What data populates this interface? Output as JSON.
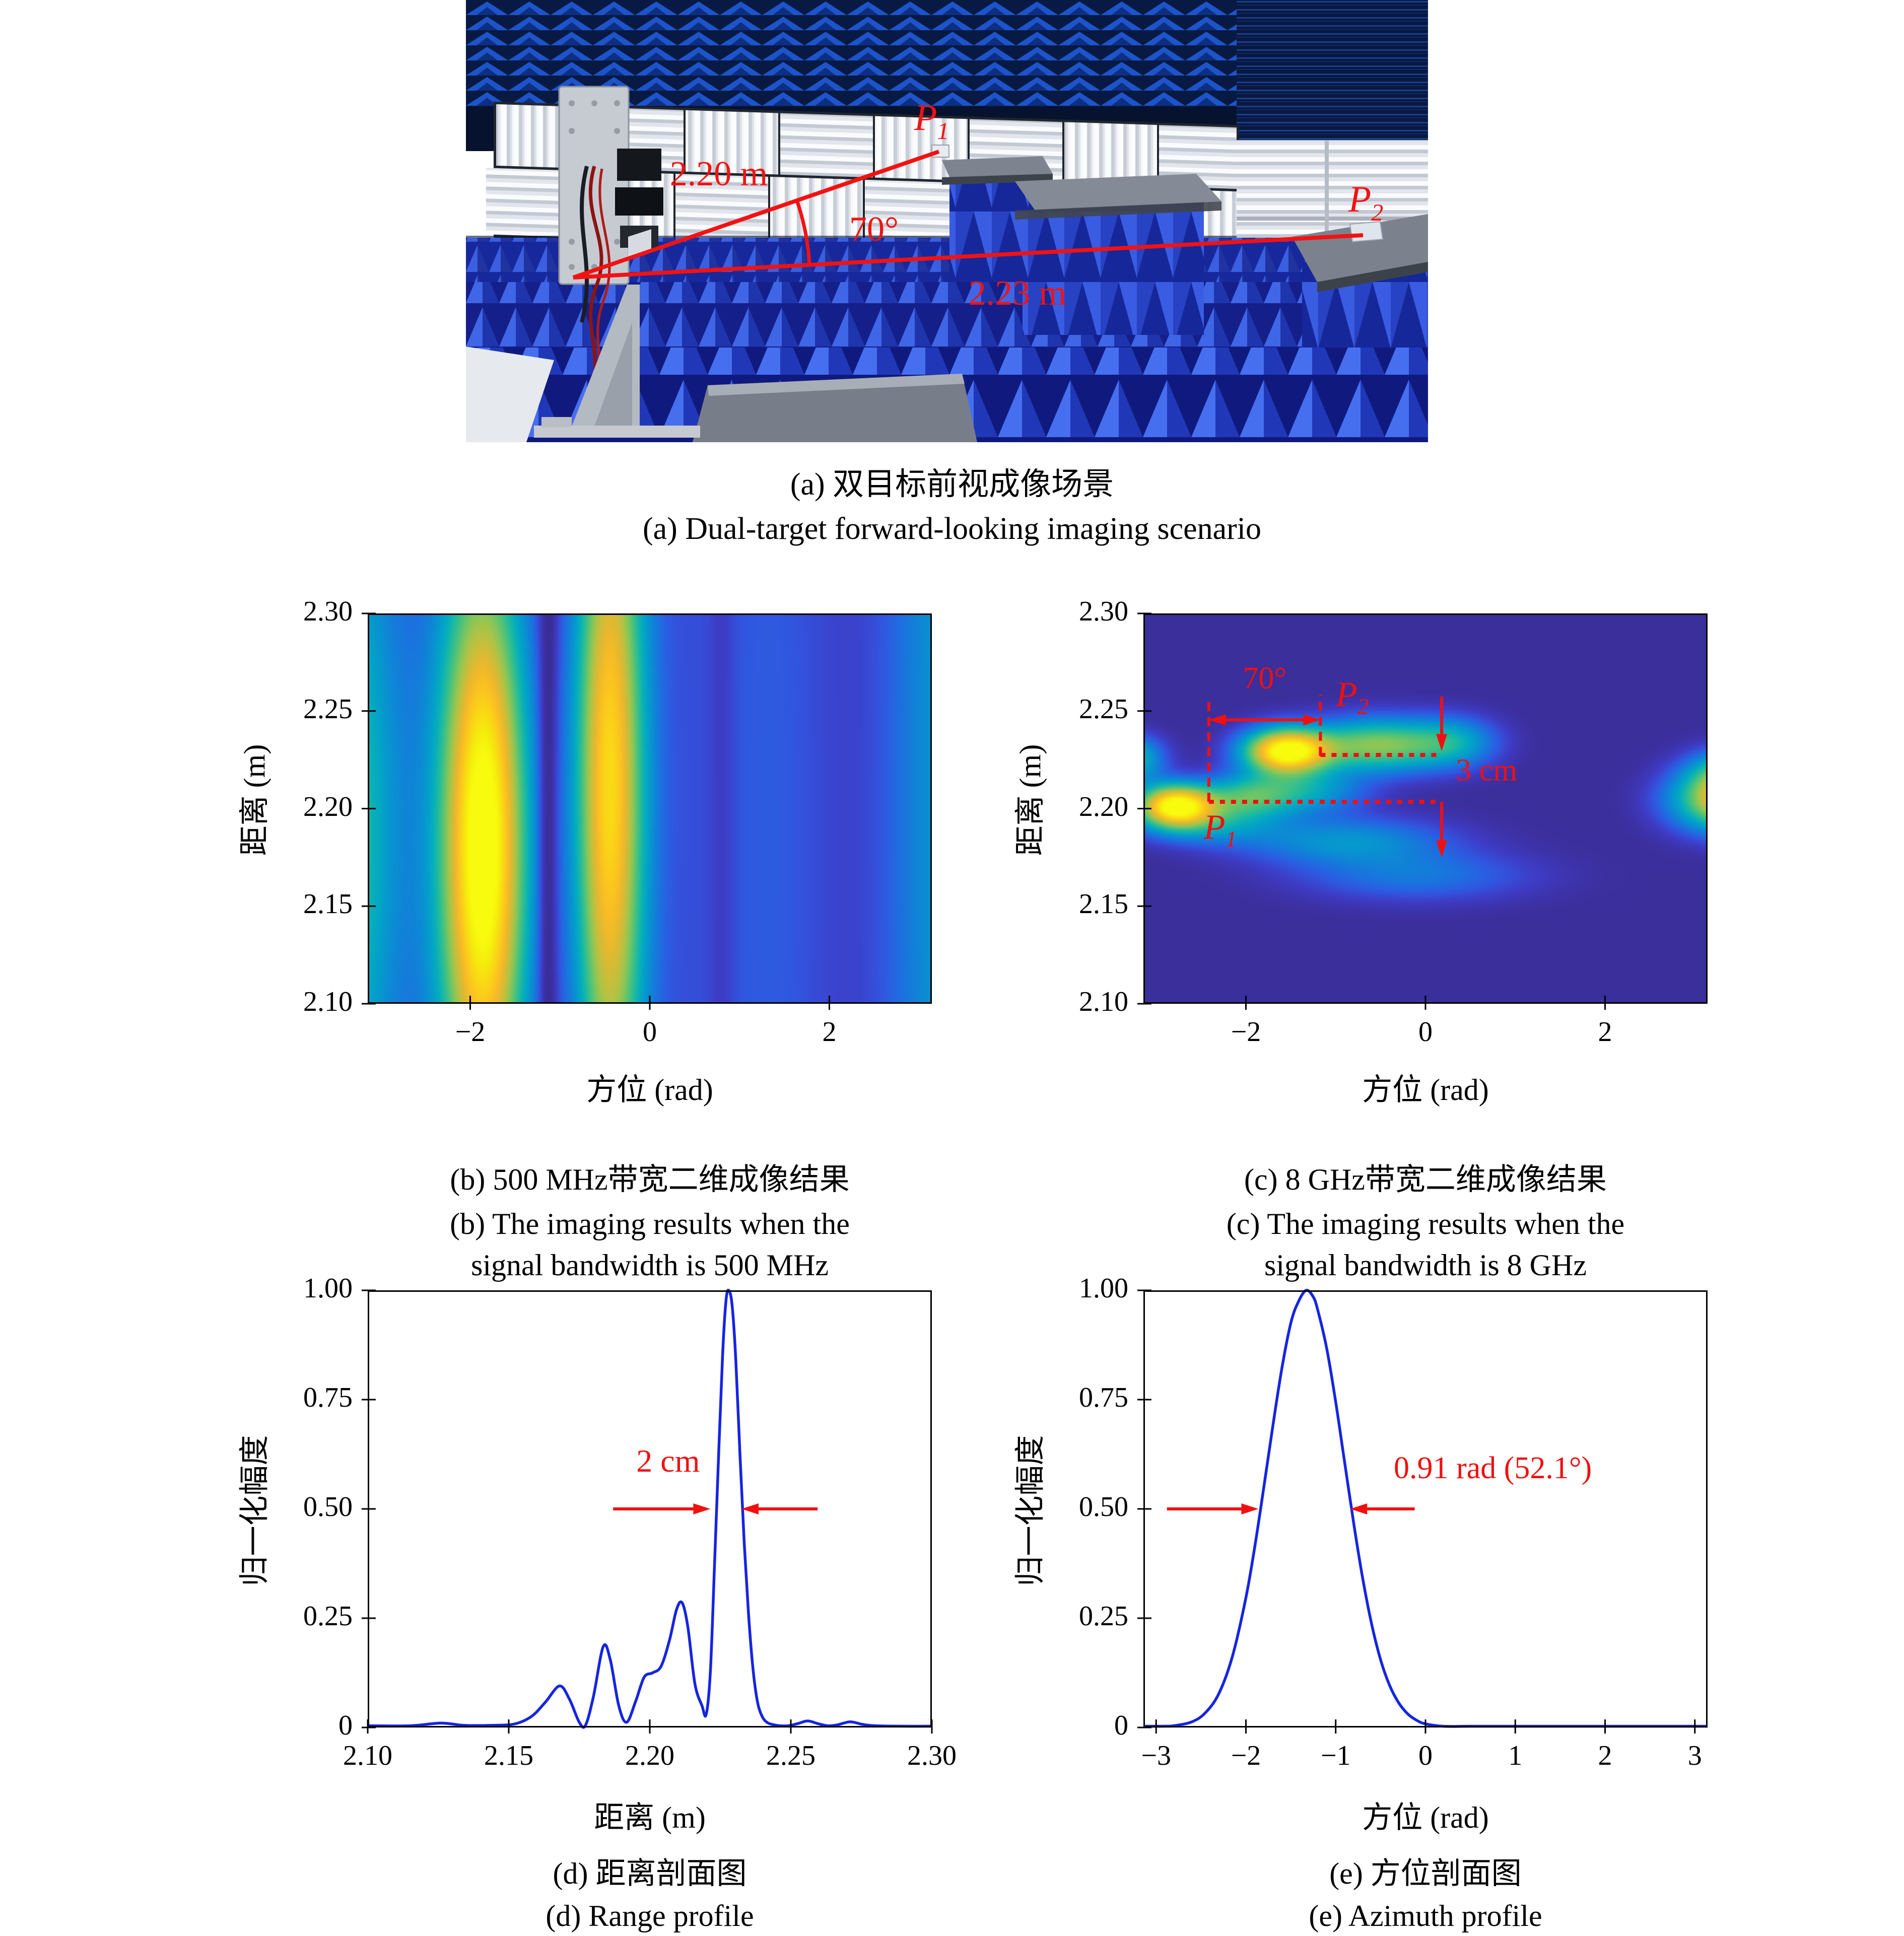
{
  "figure": {
    "panel_a": {
      "caption_zh": "(a) 双目标前视成像场景",
      "caption_en": "(a) Dual-target forward-looking imaging scenario",
      "annotations": {
        "dist1": "2.20 m",
        "angle": "70°",
        "dist2": "2.23 m",
        "p1": "P",
        "p1_sub": "1",
        "p2": "P",
        "p2_sub": "2"
      },
      "colors": {
        "annotation": "#f21212"
      }
    },
    "colors": {
      "red": "#f01010",
      "curve_blue": "#1525e0",
      "axis": "#000000"
    }
  },
  "chart_data": [
    {
      "id": "b",
      "type": "heatmap",
      "xlabel": "方位 (rad)",
      "ylabel": "距离 (m)",
      "xlim": [
        -3.1416,
        3.1416
      ],
      "ylim": [
        2.1,
        2.3
      ],
      "xticks": [
        {
          "v": -2,
          "label": "−2"
        },
        {
          "v": 0,
          "label": "0"
        },
        {
          "v": 2,
          "label": "2"
        }
      ],
      "yticks": [
        {
          "v": 2.3,
          "label": "2.30"
        },
        {
          "v": 2.25,
          "label": "2.25"
        },
        {
          "v": 2.2,
          "label": "2.20"
        },
        {
          "v": 2.15,
          "label": "2.15"
        },
        {
          "v": 2.1,
          "label": "2.10"
        }
      ],
      "colormap": "parula",
      "base": 0.09,
      "ripple": {
        "amp": 0.035,
        "freq": 2.1,
        "phase": 1.2
      },
      "blobs": [
        {
          "x": -1.85,
          "y": 2.18,
          "sx": 0.34,
          "sy": 0.105,
          "a": 1.02
        },
        {
          "x": -0.45,
          "y": 2.21,
          "sx": 0.27,
          "sy": 0.13,
          "a": 0.8
        },
        {
          "x": -3.5,
          "y": 2.19,
          "sx": 0.45,
          "sy": 0.12,
          "a": 0.44
        },
        {
          "x": 3.3,
          "y": 2.2,
          "sx": 0.42,
          "sy": 0.4,
          "a": 0.18
        },
        {
          "x": 1.45,
          "y": 2.18,
          "sx": 0.5,
          "sy": 0.45,
          "a": 0.1
        }
      ],
      "dips": [
        {
          "x": -1.13,
          "s": 0.075,
          "d": 0.8
        },
        {
          "x": 0.8,
          "s": 0.1,
          "d": 0.3
        }
      ],
      "overlay": [],
      "caption_zh": "(b) 500 MHz带宽二维成像结果",
      "caption_en1": "(b) The imaging results when the",
      "caption_en2": "signal bandwidth is 500 MHz"
    },
    {
      "id": "c",
      "type": "heatmap",
      "xlabel": "方位 (rad)",
      "ylabel": "距离 (m)",
      "xlim": [
        -3.1416,
        3.1416
      ],
      "ylim": [
        2.1,
        2.3
      ],
      "xticks": [
        {
          "v": -2,
          "label": "−2"
        },
        {
          "v": 0,
          "label": "0"
        },
        {
          "v": 2,
          "label": "2"
        }
      ],
      "yticks": [
        {
          "v": 2.3,
          "label": "2.30"
        },
        {
          "v": 2.25,
          "label": "2.25"
        },
        {
          "v": 2.2,
          "label": "2.20"
        },
        {
          "v": 2.15,
          "label": "2.15"
        },
        {
          "v": 2.1,
          "label": "2.10"
        }
      ],
      "colormap": "parula",
      "base": 0.04,
      "ripple": {
        "amp": 0.0,
        "freq": 1.0,
        "phase": 0.0
      },
      "blobs": [
        {
          "x": -2.78,
          "y": 2.2015,
          "sx": 0.3,
          "sy": 0.0075,
          "a": 1.0
        },
        {
          "x": -2.0,
          "y": 2.2055,
          "sx": 0.35,
          "sy": 0.008,
          "a": 0.38
        },
        {
          "x": -1.35,
          "y": 2.209,
          "sx": 0.45,
          "sy": 0.008,
          "a": 0.3
        },
        {
          "x": -1.55,
          "y": 2.2295,
          "sx": 0.33,
          "sy": 0.008,
          "a": 1.0
        },
        {
          "x": -0.55,
          "y": 2.2325,
          "sx": 0.5,
          "sy": 0.0095,
          "a": 0.55
        },
        {
          "x": 0.3,
          "y": 2.234,
          "sx": 0.35,
          "sy": 0.009,
          "a": 0.3
        },
        {
          "x": -3.3,
          "y": 2.2255,
          "sx": 0.25,
          "sy": 0.008,
          "a": 0.45
        },
        {
          "x": 3.45,
          "y": 2.2045,
          "sx": 0.45,
          "sy": 0.011,
          "a": 0.85
        },
        {
          "x": 3.35,
          "y": 2.2195,
          "sx": 0.3,
          "sy": 0.008,
          "a": 0.28
        },
        {
          "x": -0.9,
          "y": 2.1835,
          "sx": 0.8,
          "sy": 0.0085,
          "a": 0.26
        },
        {
          "x": -0.1,
          "y": 2.1655,
          "sx": 0.9,
          "sy": 0.009,
          "a": 0.18
        },
        {
          "x": -2.4,
          "y": 2.1915,
          "sx": 0.5,
          "sy": 0.007,
          "a": 0.22
        }
      ],
      "dips": [],
      "overlay": [
        {
          "t": "vdash",
          "x": -2.413,
          "y1": 2.2035,
          "y2": 2.2575
        },
        {
          "t": "vdash",
          "x": -1.17,
          "y1": 2.227,
          "y2": 2.2585
        },
        {
          "t": "darrow",
          "y": 2.2455,
          "x1": -2.413,
          "x2": -1.17
        },
        {
          "t": "text",
          "x": -1.79,
          "y": 2.2615,
          "s": "70°",
          "size": 62
        },
        {
          "t": "ptext",
          "x": -1.0,
          "y": 2.2525,
          "s": "P",
          "sub": "2"
        },
        {
          "t": "hdots",
          "y": 2.2275,
          "x1": -1.17,
          "x2": 0.18
        },
        {
          "t": "varrow",
          "x": 0.18,
          "y1": 2.2575,
          "y2": 2.2295
        },
        {
          "t": "text",
          "x": 0.68,
          "y": 2.2145,
          "s": "3 cm",
          "size": 62
        },
        {
          "t": "hdots",
          "y": 2.2035,
          "x1": -2.413,
          "x2": 0.18
        },
        {
          "t": "varrow",
          "x": 0.18,
          "y1": 2.2035,
          "y2": 2.175
        },
        {
          "t": "ptext",
          "x": -2.47,
          "y": 2.1845,
          "s": "P",
          "sub": "1"
        }
      ],
      "caption_zh": "(c) 8 GHz带宽二维成像结果",
      "caption_en1": "(c) The imaging results when the",
      "caption_en2": "signal bandwidth is 8 GHz"
    },
    {
      "id": "d",
      "type": "line",
      "xlabel": "距离 (m)",
      "ylabel": "归一化幅度",
      "xlim": [
        2.1,
        2.3
      ],
      "ylim": [
        0,
        1.0
      ],
      "xticks": [
        {
          "v": 2.1,
          "label": "2.10"
        },
        {
          "v": 2.15,
          "label": "2.15"
        },
        {
          "v": 2.2,
          "label": "2.20"
        },
        {
          "v": 2.25,
          "label": "2.25"
        },
        {
          "v": 2.3,
          "label": "2.30"
        }
      ],
      "yticks": [
        {
          "v": 1.0,
          "label": "1.00"
        },
        {
          "v": 0.75,
          "label": "0.75"
        },
        {
          "v": 0.5,
          "label": "0.50"
        },
        {
          "v": 0.25,
          "label": "0.25"
        },
        {
          "v": 0,
          "label": "0"
        }
      ],
      "points": [
        [
          2.1,
          0.004
        ],
        [
          2.115,
          0.004
        ],
        [
          2.126,
          0.01
        ],
        [
          2.134,
          0.005
        ],
        [
          2.144,
          0.005
        ],
        [
          2.152,
          0.008
        ],
        [
          2.158,
          0.025
        ],
        [
          2.163,
          0.058
        ],
        [
          2.168,
          0.095
        ],
        [
          2.1715,
          0.065
        ],
        [
          2.175,
          0.012
        ],
        [
          2.1772,
          0.005
        ],
        [
          2.18,
          0.07
        ],
        [
          2.1835,
          0.185
        ],
        [
          2.186,
          0.155
        ],
        [
          2.189,
          0.05
        ],
        [
          2.1918,
          0.012
        ],
        [
          2.195,
          0.06
        ],
        [
          2.198,
          0.115
        ],
        [
          2.201,
          0.125
        ],
        [
          2.204,
          0.14
        ],
        [
          2.207,
          0.2
        ],
        [
          2.2095,
          0.27
        ],
        [
          2.2115,
          0.285
        ],
        [
          2.2135,
          0.23
        ],
        [
          2.216,
          0.1
        ],
        [
          2.2185,
          0.05
        ],
        [
          2.22,
          0.03
        ],
        [
          2.2215,
          0.13
        ],
        [
          2.223,
          0.38
        ],
        [
          2.2245,
          0.64
        ],
        [
          2.2258,
          0.85
        ],
        [
          2.227,
          0.975
        ],
        [
          2.228,
          1.0
        ],
        [
          2.2292,
          0.965
        ],
        [
          2.2305,
          0.84
        ],
        [
          2.232,
          0.62
        ],
        [
          2.2335,
          0.42
        ],
        [
          2.235,
          0.26
        ],
        [
          2.2365,
          0.14
        ],
        [
          2.238,
          0.065
        ],
        [
          2.2395,
          0.03
        ],
        [
          2.2415,
          0.012
        ],
        [
          2.245,
          0.005
        ],
        [
          2.249,
          0.004
        ],
        [
          2.2525,
          0.009
        ],
        [
          2.256,
          0.015
        ],
        [
          2.2595,
          0.009
        ],
        [
          2.263,
          0.004
        ],
        [
          2.2665,
          0.006
        ],
        [
          2.271,
          0.013
        ],
        [
          2.2755,
          0.007
        ],
        [
          2.28,
          0.004
        ],
        [
          2.29,
          0.003
        ],
        [
          2.3,
          0.003
        ]
      ],
      "overlay": [
        {
          "t": "harrow",
          "y": 0.5,
          "x1": 2.187,
          "x2": 2.2215
        },
        {
          "t": "harrow",
          "y": 0.5,
          "x1": 2.2595,
          "x2": 2.2325
        },
        {
          "t": "text",
          "x": 2.2065,
          "y": 0.585,
          "s": "2 cm",
          "size": 64
        }
      ],
      "caption_zh": "(d) 距离剖面图",
      "caption_en1": "(d) Range profile",
      "caption_en2": ""
    },
    {
      "id": "e",
      "type": "line",
      "xlabel": "方位 (rad)",
      "ylabel": "归一化幅度",
      "xlim": [
        -3.1416,
        3.1416
      ],
      "ylim": [
        0,
        1.0
      ],
      "xticks": [
        {
          "v": -3,
          "label": "−3"
        },
        {
          "v": -2,
          "label": "−2"
        },
        {
          "v": -1,
          "label": "−1"
        },
        {
          "v": 0,
          "label": "0"
        },
        {
          "v": 1,
          "label": "1"
        },
        {
          "v": 2,
          "label": "2"
        },
        {
          "v": 3,
          "label": "3"
        }
      ],
      "yticks": [
        {
          "v": 1.0,
          "label": "1.00"
        },
        {
          "v": 0.75,
          "label": "0.75"
        },
        {
          "v": 0.5,
          "label": "0.50"
        },
        {
          "v": 0.25,
          "label": "0.25"
        },
        {
          "v": 0,
          "label": "0"
        }
      ],
      "points": [
        [
          -3.1416,
          0.002
        ],
        [
          -2.9,
          0.003
        ],
        [
          -2.8,
          0.004
        ],
        [
          -2.6,
          0.013
        ],
        [
          -2.45,
          0.034
        ],
        [
          -2.3,
          0.078
        ],
        [
          -2.15,
          0.163
        ],
        [
          -2.0,
          0.297
        ],
        [
          -1.9,
          0.415
        ],
        [
          -1.8,
          0.55
        ],
        [
          -1.7,
          0.69
        ],
        [
          -1.6,
          0.821
        ],
        [
          -1.5,
          0.925
        ],
        [
          -1.42,
          0.972
        ],
        [
          -1.33,
          1.0
        ],
        [
          -1.25,
          0.985
        ],
        [
          -1.2,
          0.955
        ],
        [
          -1.1,
          0.867
        ],
        [
          -1.0,
          0.745
        ],
        [
          -0.9,
          0.606
        ],
        [
          -0.8,
          0.468
        ],
        [
          -0.7,
          0.342
        ],
        [
          -0.6,
          0.237
        ],
        [
          -0.5,
          0.155
        ],
        [
          -0.4,
          0.0965
        ],
        [
          -0.3,
          0.057
        ],
        [
          -0.2,
          0.0316
        ],
        [
          -0.1,
          0.0167
        ],
        [
          0.0,
          0.0083
        ],
        [
          0.2,
          0.002
        ],
        [
          0.5,
          0.001
        ],
        [
          1.0,
          0.001
        ],
        [
          2.0,
          0.001
        ],
        [
          3.1416,
          0.001
        ]
      ],
      "overlay": [
        {
          "t": "harrow",
          "y": 0.5,
          "x1": -2.88,
          "x2": -1.86
        },
        {
          "t": "harrow",
          "y": 0.5,
          "x1": -0.12,
          "x2": -0.84
        },
        {
          "t": "text",
          "x": 0.75,
          "y": 0.57,
          "s": "0.91 rad (52.1°)",
          "size": 62
        }
      ],
      "caption_zh": "(e) 方位剖面图",
      "caption_en1": "(e) Azimuth profile",
      "caption_en2": ""
    }
  ]
}
